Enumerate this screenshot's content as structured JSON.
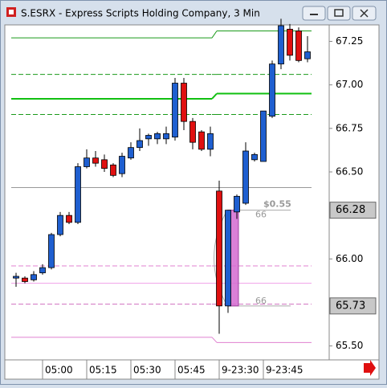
{
  "chart_data": {
    "type": "candlestick",
    "title": "S.ESRX - Express Scripts Holding Company, 3 Min",
    "categories": [
      null,
      null,
      null,
      "05:00",
      null,
      null,
      null,
      null,
      "05:15",
      null,
      null,
      null,
      null,
      "05:30",
      null,
      null,
      null,
      null,
      "05:45",
      null,
      null,
      null,
      null,
      "9-23:30",
      null,
      null,
      null,
      null,
      "9-23:45",
      null,
      null,
      null,
      null,
      null
    ],
    "open": [
      65.89,
      65.89,
      65.88,
      65.92,
      65.95,
      66.14,
      66.25,
      66.21,
      66.53,
      66.58,
      66.57,
      66.54,
      66.49,
      66.58,
      66.64,
      66.69,
      66.69,
      66.69,
      66.7,
      67.01,
      66.79,
      66.73,
      66.63,
      66.39,
      65.73,
      66.27,
      66.32,
      66.57,
      66.56,
      66.82,
      67.12,
      67.32,
      67.31,
      67.15
    ],
    "high": [
      65.92,
      65.9,
      65.93,
      65.97,
      66.15,
      66.27,
      66.27,
      66.55,
      66.63,
      66.62,
      66.6,
      66.55,
      66.61,
      66.67,
      66.75,
      66.72,
      66.73,
      66.76,
      67.04,
      67.04,
      66.81,
      66.74,
      66.76,
      66.45,
      66.28,
      66.37,
      66.67,
      66.61,
      66.85,
      67.14,
      67.38,
      67.35,
      67.33,
      67.28
    ],
    "low": [
      65.84,
      65.86,
      65.87,
      65.91,
      65.94,
      66.13,
      66.2,
      66.2,
      66.52,
      66.53,
      66.5,
      66.47,
      66.47,
      66.57,
      66.62,
      66.65,
      66.66,
      66.66,
      66.68,
      66.74,
      66.63,
      66.62,
      66.59,
      65.57,
      65.69,
      66.23,
      66.31,
      66.56,
      66.56,
      66.81,
      67.09,
      67.14,
      67.13,
      67.13
    ],
    "close": [
      65.9,
      65.87,
      65.91,
      65.95,
      66.14,
      66.25,
      66.21,
      66.53,
      66.58,
      66.55,
      66.52,
      66.48,
      66.59,
      66.64,
      66.68,
      66.71,
      66.72,
      66.72,
      67.01,
      66.79,
      66.67,
      66.63,
      66.72,
      65.73,
      66.28,
      66.36,
      66.62,
      66.6,
      66.85,
      67.12,
      67.34,
      67.17,
      67.14,
      67.19
    ],
    "up_color": "#1f5fd0",
    "down_color": "#e01010",
    "levels": [
      {
        "color": "#1a9a1a",
        "dash": false,
        "values": [
          67.27,
          67.31
        ]
      },
      {
        "color": "#1a9a1a",
        "dash": true,
        "values": [
          67.06,
          67.06
        ]
      },
      {
        "color": "#11c011",
        "dash": false,
        "values": [
          66.92,
          66.95
        ]
      },
      {
        "color": "#1a9a1a",
        "dash": true,
        "values": [
          66.83,
          66.83
        ]
      },
      {
        "color": "#999999",
        "dash": false,
        "values": [
          66.41,
          66.41
        ]
      },
      {
        "color": "#e080d0",
        "dash": true,
        "values": [
          65.96,
          65.96
        ]
      },
      {
        "color": "#f0a0e8",
        "dash": false,
        "values": [
          65.86,
          65.86
        ]
      },
      {
        "color": "#d070c0",
        "dash": true,
        "values": [
          65.74,
          65.74
        ]
      },
      {
        "color": "#e080d0",
        "dash": false,
        "values": [
          65.55,
          65.52
        ]
      }
    ],
    "price_markers": [
      66.28,
      65.73
    ],
    "annotations": [
      "$0.55",
      "66",
      "66"
    ],
    "ylim": [
      65.42,
      67.34
    ],
    "yticks": [
      67.25,
      {
        "value": 67,
        "label": "67.00"
      },
      66.75,
      {
        "value": 66.5,
        "label": "66.50"
      },
      {
        "value": 66,
        "label": "66.00"
      },
      {
        "value": 65.5,
        "label": "65.50"
      }
    ]
  }
}
